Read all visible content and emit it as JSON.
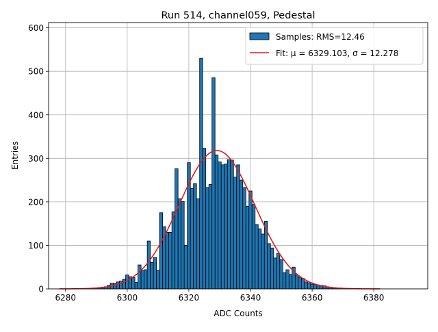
{
  "chart_data": {
    "type": "bar",
    "title": "Run 514, channel059, Pedestal",
    "xlabel": "ADC Counts",
    "ylabel": "Entries",
    "xlim": [
      6274.5,
      6397.5
    ],
    "ylim": [
      0,
      612
    ],
    "xticks": [
      6280,
      6300,
      6320,
      6340,
      6360,
      6380
    ],
    "yticks": [
      0,
      100,
      200,
      300,
      400,
      500,
      600
    ],
    "grid": true,
    "legend_position": "top-right",
    "bin_width": 1,
    "bar_color": "#1f77b4",
    "fit_color": "#e41a1c",
    "histogram": {
      "name": "Samples: RMS=12.46",
      "x": [
        6286,
        6287,
        6288,
        6289,
        6290,
        6291,
        6292,
        6293,
        6294,
        6295,
        6296,
        6297,
        6298,
        6299,
        6300,
        6301,
        6302,
        6303,
        6304,
        6305,
        6306,
        6307,
        6308,
        6309,
        6310,
        6311,
        6312,
        6313,
        6314,
        6315,
        6316,
        6317,
        6318,
        6319,
        6320,
        6321,
        6322,
        6323,
        6324,
        6325,
        6326,
        6327,
        6328,
        6329,
        6330,
        6331,
        6332,
        6333,
        6334,
        6335,
        6336,
        6337,
        6338,
        6339,
        6340,
        6341,
        6342,
        6343,
        6344,
        6345,
        6346,
        6347,
        6348,
        6349,
        6350,
        6351,
        6352,
        6353,
        6354,
        6355,
        6356,
        6357,
        6358,
        6359,
        6360,
        6361,
        6362,
        6363,
        6364,
        6365,
        6366,
        6367,
        6368,
        6369,
        6370,
        6371,
        6372,
        6373
      ],
      "values": [
        1,
        1,
        1,
        2,
        2,
        3,
        4,
        5,
        8,
        13,
        12,
        16,
        18,
        22,
        32,
        28,
        26,
        15,
        55,
        42,
        44,
        110,
        61,
        72,
        42,
        175,
        143,
        130,
        130,
        177,
        276,
        207,
        201,
        100,
        290,
        231,
        242,
        207,
        530,
        323,
        233,
        240,
        485,
        308,
        292,
        285,
        287,
        297,
        296,
        257,
        285,
        250,
        233,
        190,
        225,
        194,
        148,
        138,
        126,
        155,
        104,
        94,
        71,
        82,
        67,
        37,
        44,
        33,
        50,
        32,
        27,
        24,
        16,
        14,
        11,
        10,
        9,
        8,
        7,
        5,
        4,
        3,
        2,
        2,
        1,
        1,
        1,
        1
      ]
    },
    "fit": {
      "name": "Fit: μ = 6329.103, σ = 12.278",
      "mu": 6329.103,
      "sigma": 12.278,
      "amplitude": 318,
      "xrange": [
        6278,
        6382
      ]
    }
  }
}
